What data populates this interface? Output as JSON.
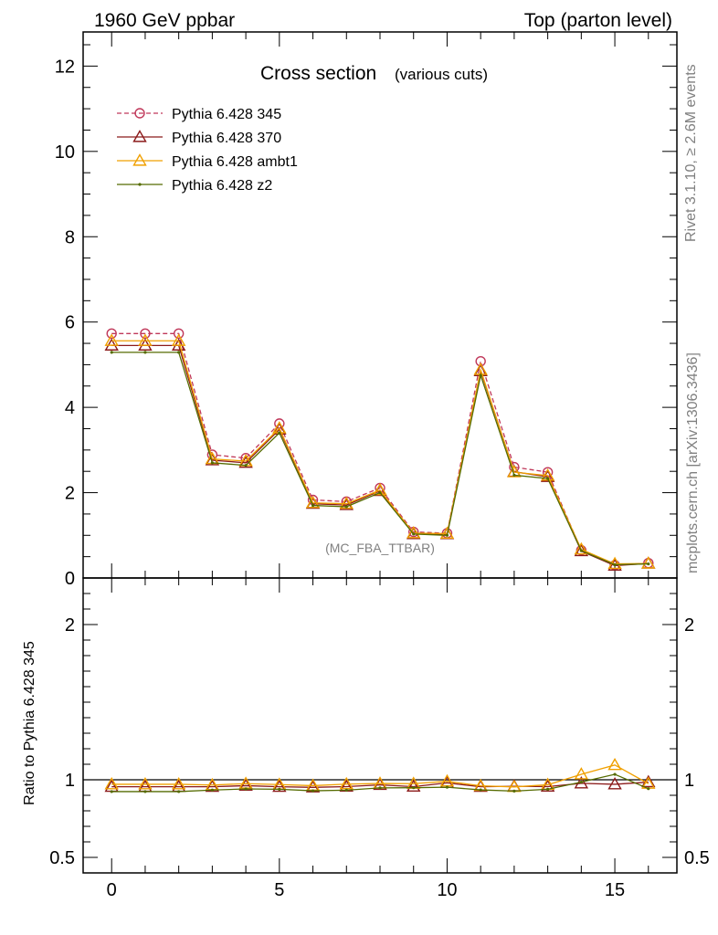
{
  "header": {
    "left": "1960 GeV ppbar",
    "right": "Top (parton level)"
  },
  "side": {
    "rivet": "Rivet 3.1.10, ≥ 2.6M events",
    "mcplots": "mcplots.cern.ch [arXiv:1306.3436]"
  },
  "chart_data": {
    "type": "line",
    "title": "Cross section",
    "subtitle": "(various cuts)",
    "watermark": "(MC_FBA_TTBAR)",
    "ratio_ylabel": "Ratio to Pythia 6.428 345",
    "legend_position": "top-left",
    "x": [
      0,
      1,
      2,
      3,
      4,
      5,
      6,
      7,
      8,
      9,
      10,
      11,
      12,
      13,
      14,
      15,
      16
    ],
    "xlim": [
      -0.85,
      16.85
    ],
    "ylim": [
      0,
      12.8
    ],
    "ratio_ylim": [
      0.4,
      2.3
    ],
    "x_ticks": [
      0,
      5,
      10,
      15
    ],
    "y_ticks": [
      0,
      2,
      4,
      6,
      8,
      10,
      12
    ],
    "ratio_ticks": [
      0.5,
      1,
      2
    ],
    "series": [
      {
        "name": "Pythia 6.428 345",
        "color": "#c0385a",
        "marker": "circle",
        "dashed": true,
        "values": [
          5.73,
          5.73,
          5.73,
          2.89,
          2.81,
          3.62,
          1.83,
          1.79,
          2.11,
          1.08,
          1.05,
          5.08,
          2.6,
          2.48,
          0.65,
          0.3,
          0.35
        ]
      },
      {
        "name": "Pythia 6.428 370",
        "color": "#8b1a1a",
        "marker": "triangle",
        "dashed": false,
        "values": [
          5.45,
          5.45,
          5.45,
          2.76,
          2.7,
          3.48,
          1.74,
          1.71,
          2.04,
          1.03,
          1.03,
          4.85,
          2.49,
          2.37,
          0.63,
          0.29,
          0.34
        ]
      },
      {
        "name": "Pythia 6.428 ambt1",
        "color": "#f0a000",
        "marker": "triangle",
        "dashed": false,
        "values": [
          5.56,
          5.56,
          5.56,
          2.79,
          2.74,
          3.51,
          1.76,
          1.74,
          2.06,
          1.05,
          1.04,
          4.88,
          2.48,
          2.4,
          0.67,
          0.33,
          0.34
        ]
      },
      {
        "name": "Pythia 6.428 z2",
        "color": "#556b00",
        "marker": "dot",
        "dashed": false,
        "values": [
          5.29,
          5.29,
          5.29,
          2.7,
          2.64,
          3.4,
          1.7,
          1.67,
          2.0,
          1.03,
          1.0,
          4.75,
          2.41,
          2.33,
          0.64,
          0.31,
          0.33
        ]
      }
    ],
    "ratio": [
      {
        "name": "Pythia 6.428 345",
        "values": [
          1,
          1,
          1,
          1,
          1,
          1,
          1,
          1,
          1,
          1,
          1,
          1,
          1,
          1,
          1,
          1,
          1
        ]
      },
      {
        "name": "Pythia 6.428 370",
        "values": [
          0.955,
          0.955,
          0.955,
          0.955,
          0.962,
          0.955,
          0.951,
          0.956,
          0.967,
          0.956,
          0.98,
          0.955,
          0.958,
          0.956,
          0.977,
          0.971,
          0.985
        ]
      },
      {
        "name": "Pythia 6.428 ambt1",
        "values": [
          0.971,
          0.971,
          0.971,
          0.966,
          0.975,
          0.969,
          0.962,
          0.972,
          0.976,
          0.975,
          0.99,
          0.961,
          0.954,
          0.968,
          1.035,
          1.095,
          0.975
        ]
      },
      {
        "name": "Pythia 6.428 z2",
        "values": [
          0.924,
          0.924,
          0.924,
          0.934,
          0.941,
          0.939,
          0.929,
          0.933,
          0.948,
          0.949,
          0.952,
          0.935,
          0.927,
          0.939,
          0.985,
          1.035,
          0.943
        ]
      }
    ]
  }
}
